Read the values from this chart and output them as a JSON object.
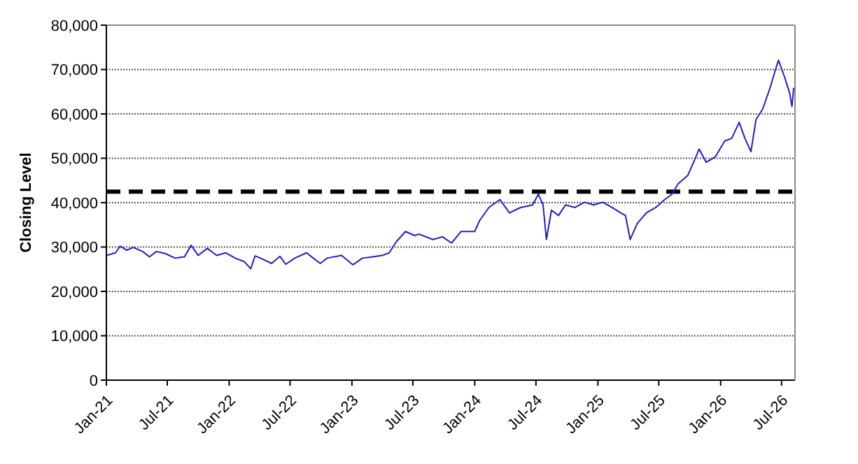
{
  "chart_data": {
    "type": "line",
    "ylabel": "Closing Level",
    "xlim": [
      "2021-01-01",
      "2026-08-10"
    ],
    "xticks": [
      {
        "value": "2021-01",
        "label": "Jan-21"
      },
      {
        "value": "2021-07",
        "label": "Jul-21"
      },
      {
        "value": "2022-01",
        "label": "Jan-22"
      },
      {
        "value": "2022-07",
        "label": "Jul-22"
      },
      {
        "value": "2023-01",
        "label": "Jan-23"
      },
      {
        "value": "2023-07",
        "label": "Jul-23"
      },
      {
        "value": "2024-01",
        "label": "Jan-24"
      },
      {
        "value": "2024-07",
        "label": "Jul-24"
      },
      {
        "value": "2025-01",
        "label": "Jan-25"
      },
      {
        "value": "2025-07",
        "label": "Jul-25"
      },
      {
        "value": "2026-01",
        "label": "Jan-26"
      },
      {
        "value": "2026-07",
        "label": "Jul-26"
      }
    ],
    "ylim": [
      0,
      80000
    ],
    "yticks": [
      {
        "value": 0,
        "label": "0"
      },
      {
        "value": 10000,
        "label": "10,000"
      },
      {
        "value": 20000,
        "label": "20,000"
      },
      {
        "value": 30000,
        "label": "30,000"
      },
      {
        "value": 40000,
        "label": "40,000"
      },
      {
        "value": 50000,
        "label": "50,000"
      },
      {
        "value": 60000,
        "label": "60,000"
      },
      {
        "value": 70000,
        "label": "70,000"
      },
      {
        "value": 80000,
        "label": "80,000"
      }
    ],
    "grid": "y",
    "marker": "none",
    "line_style": "solid",
    "ref_lines": [
      {
        "axis": "y",
        "value": 42500,
        "color": "#000000",
        "line_style": "dashed"
      }
    ],
    "series": [
      {
        "color": "#2020c8",
        "x": [
          "2021-01-01",
          "2021-01-28",
          "2021-02-11",
          "2021-03-02",
          "2021-03-22",
          "2021-04-19",
          "2021-05-09",
          "2021-05-30",
          "2021-06-26",
          "2021-07-24",
          "2021-08-21",
          "2021-09-10",
          "2021-10-01",
          "2021-10-28",
          "2021-11-25",
          "2021-12-22",
          "2022-01-19",
          "2022-02-15",
          "2022-03-06",
          "2022-03-19",
          "2022-04-10",
          "2022-05-07",
          "2022-06-01",
          "2022-06-18",
          "2022-07-15",
          "2022-08-19",
          "2022-09-08",
          "2022-09-29",
          "2022-10-19",
          "2022-12-01",
          "2023-01-04",
          "2023-02-01",
          "2023-03-04",
          "2023-04-01",
          "2023-04-22",
          "2023-05-12",
          "2023-06-09",
          "2023-07-06",
          "2023-07-20",
          "2023-08-30",
          "2023-09-27",
          "2023-10-24",
          "2023-11-21",
          "2024-01-01",
          "2024-01-15",
          "2024-02-12",
          "2024-03-16",
          "2024-04-13",
          "2024-05-16",
          "2024-06-21",
          "2024-07-08",
          "2024-07-22",
          "2024-08-01",
          "2024-08-16",
          "2024-09-06",
          "2024-09-27",
          "2024-10-25",
          "2024-11-22",
          "2024-12-19",
          "2025-01-16",
          "2025-02-12",
          "2025-03-10",
          "2025-03-24",
          "2025-04-07",
          "2025-04-28",
          "2025-05-25",
          "2025-06-22",
          "2025-07-19",
          "2025-08-09",
          "2025-08-28",
          "2025-09-25",
          "2025-10-16",
          "2025-10-29",
          "2025-11-19",
          "2025-12-16",
          "2026-01-13",
          "2026-02-03",
          "2026-02-25",
          "2026-03-14",
          "2026-04-01",
          "2026-04-16",
          "2026-05-06",
          "2026-05-28",
          "2026-06-11",
          "2026-06-22",
          "2026-07-10",
          "2026-07-25",
          "2026-08-01",
          "2026-08-06"
        ],
        "values": [
          28100,
          28700,
          30200,
          29300,
          29900,
          29000,
          27800,
          29000,
          28500,
          27500,
          27800,
          30400,
          28100,
          29700,
          28100,
          28700,
          27500,
          26700,
          25100,
          28000,
          27300,
          26300,
          27900,
          26100,
          27500,
          28700,
          27500,
          26300,
          27500,
          28100,
          26000,
          27500,
          27800,
          28100,
          28700,
          31100,
          33500,
          32600,
          32900,
          31700,
          32300,
          30900,
          33500,
          33500,
          35900,
          38900,
          40700,
          37700,
          38900,
          39500,
          41900,
          39500,
          31700,
          38300,
          37100,
          39500,
          38900,
          40100,
          39500,
          40100,
          38900,
          37700,
          37100,
          31700,
          35300,
          37700,
          38900,
          40700,
          41900,
          44300,
          46100,
          49700,
          52100,
          49100,
          50300,
          53900,
          54500,
          58100,
          54500,
          51500,
          58700,
          61100,
          65900,
          69500,
          72100,
          68300,
          64700,
          61700,
          65900
        ]
      }
    ]
  }
}
